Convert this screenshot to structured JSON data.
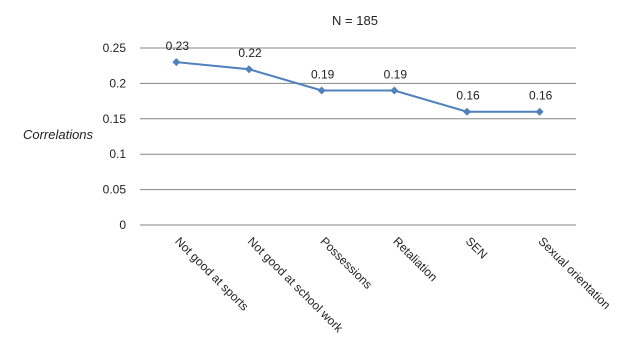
{
  "chart_data": {
    "type": "line",
    "title": "N = 185",
    "ylabel": "Correlations",
    "xlabel": "",
    "categories": [
      "Not good at sports",
      "Not good at school work",
      "Possessions",
      "Retaliation",
      "SEN",
      "Sexual orientation"
    ],
    "series": [
      {
        "values": [
          0.23,
          0.22,
          0.19,
          0.19,
          0.16,
          0.16
        ],
        "data_labels": [
          "0.23",
          "0.22",
          "0.19",
          "0.19",
          "0.16",
          "0.16"
        ],
        "color": "#4f81bd"
      }
    ],
    "ylim": [
      0,
      0.25
    ],
    "yticks": [
      0,
      0.05,
      0.1,
      0.15,
      0.2,
      0.25
    ],
    "ytick_labels": [
      "0",
      "0.05",
      "0.1",
      "0.15",
      "0.2",
      "0.25"
    ],
    "grid": true,
    "legend": "none"
  },
  "colors": {
    "line": "#4f81bd",
    "grid": "#868686",
    "text": "#222222"
  }
}
